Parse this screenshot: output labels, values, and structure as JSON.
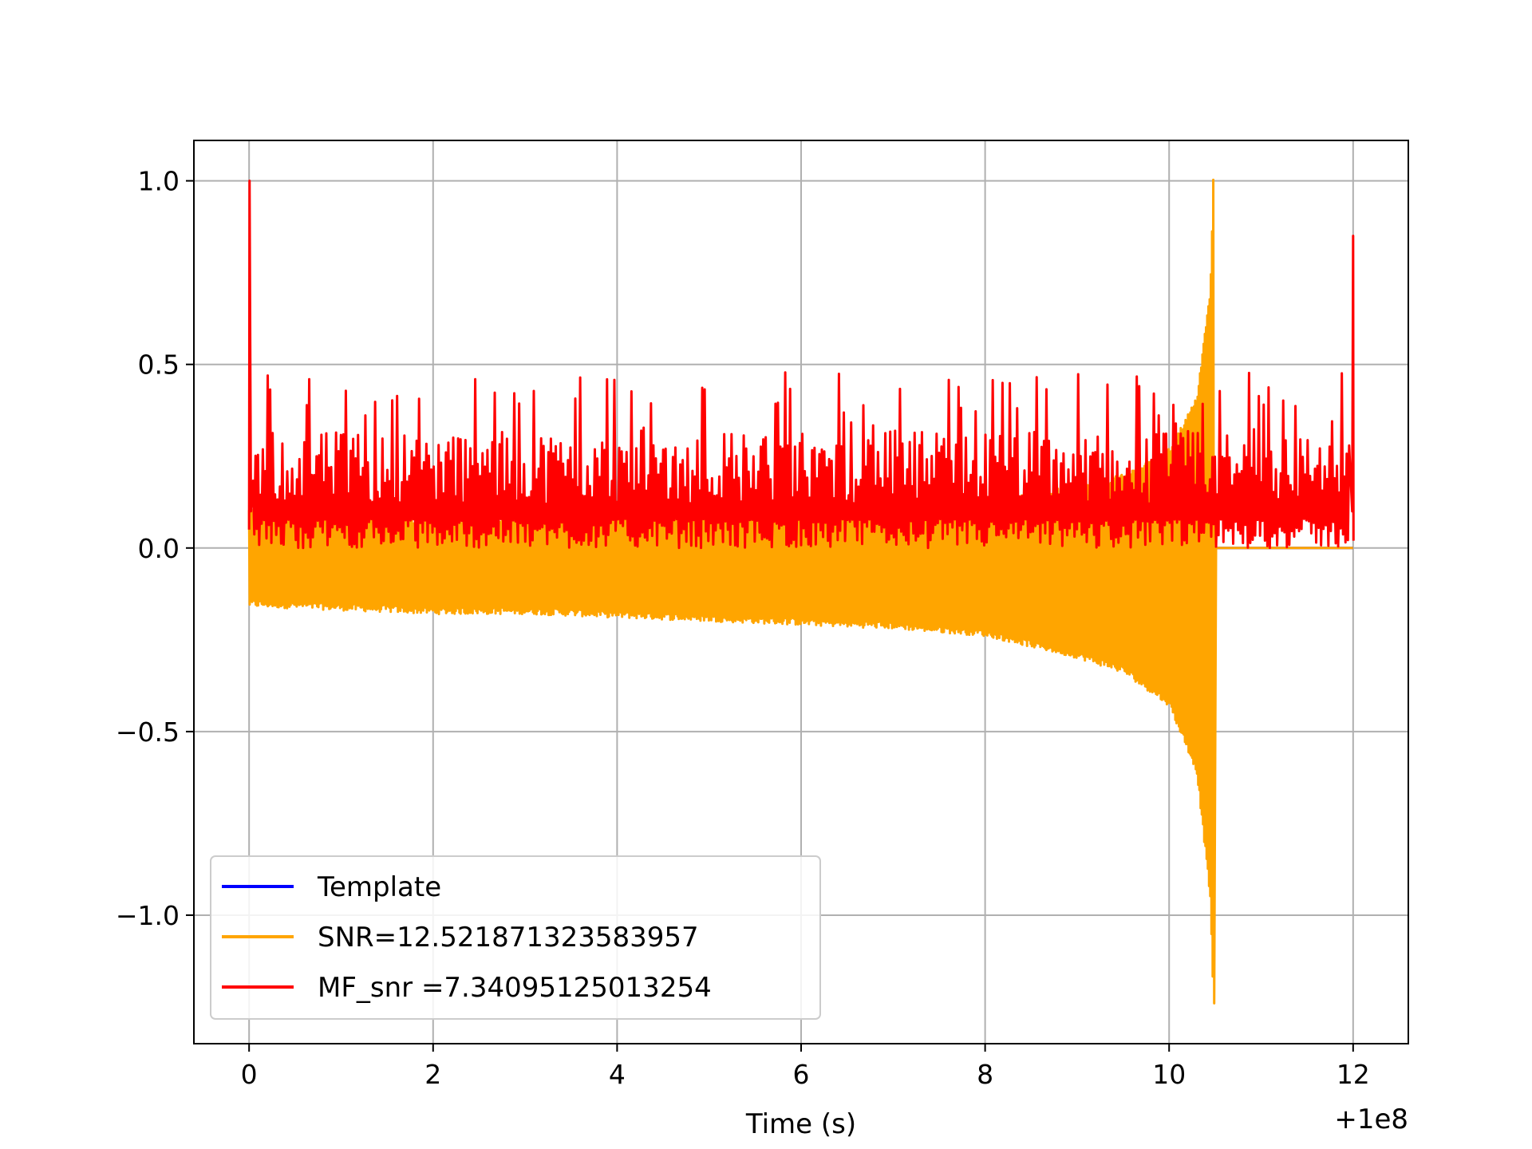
{
  "chart_data": {
    "type": "line",
    "xlabel": "Time (s)",
    "ylabel": "",
    "x_offset_label": "+1e8",
    "xlim": [
      -0.6,
      12.6
    ],
    "ylim": [
      -1.35,
      1.11
    ],
    "xticks": [
      0,
      2,
      4,
      6,
      8,
      10,
      12
    ],
    "xtick_labels": [
      "0",
      "2",
      "4",
      "6",
      "8",
      "10",
      "12"
    ],
    "yticks": [
      -1.0,
      -0.5,
      0.0,
      0.5,
      1.0
    ],
    "ytick_labels": [
      "−1.0",
      "−0.5",
      "0.0",
      "0.5",
      "1.0"
    ],
    "grid": true,
    "legend_position": "lower-left",
    "series": [
      {
        "name": "Template",
        "color": "#0000ff",
        "description_points": [
          [
            0,
            0.0
          ],
          [
            12,
            0.0
          ]
        ]
      },
      {
        "name": "SNR=12.521871323583957",
        "color": "#ffa500",
        "envelope": {
          "x": [
            0,
            1,
            2,
            3,
            4,
            5,
            6,
            7,
            8,
            9,
            9.5,
            10,
            10.3,
            10.45,
            10.48
          ],
          "upper": [
            0.1,
            0.08,
            0.07,
            0.07,
            0.08,
            0.08,
            0.09,
            0.1,
            0.12,
            0.16,
            0.19,
            0.26,
            0.4,
            0.7,
            1.0
          ],
          "lower": [
            -0.15,
            -0.16,
            -0.17,
            -0.17,
            -0.18,
            -0.19,
            -0.2,
            -0.21,
            -0.23,
            -0.29,
            -0.33,
            -0.42,
            -0.6,
            -0.95,
            -1.24
          ]
        },
        "merger_time": 10.48,
        "post_merger_value": 0.0,
        "x_end": 12
      },
      {
        "name": "MF_snr =7.34095125013254",
        "color": "#ff0000",
        "start_peak": 1.0,
        "end_peak": 0.85,
        "typical_range": [
          0.0,
          0.48
        ],
        "x_start": 0,
        "x_end": 12
      }
    ]
  }
}
